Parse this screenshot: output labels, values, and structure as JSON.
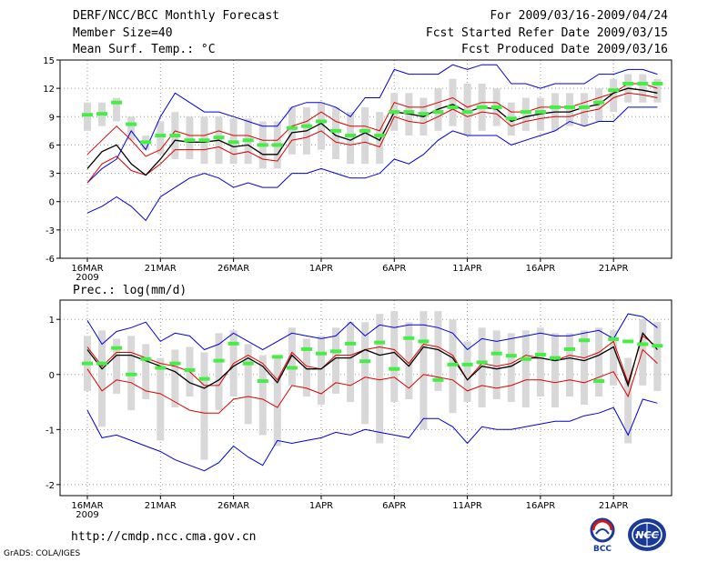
{
  "header": {
    "title": "DERF/NCC/BCC Monthly Forecast",
    "member_size": "Member Size=40",
    "variable": "Mean Surf. Temp.: °C",
    "forecast_period": "For 2009/03/16-2009/04/24",
    "fcst_started": "Fcst Started Refer Date 2009/03/15",
    "fcst_produced": "Fcst Produced Date 2009/03/16"
  },
  "footer": {
    "url": "http://cmdp.ncc.cma.gov.cn",
    "credit": "GrADS: COLA/IGES",
    "logo1_text": "BCC",
    "logo2_text": "NCC"
  },
  "colors": {
    "ensemble_mean": "#000000",
    "spread_band": "#dd0000",
    "min_max_envelope": "#0000dd",
    "member_range_bar": "#d8d8d8",
    "median_marker": "#44ee44",
    "grid": "#999999"
  },
  "chart_data": [
    {
      "type": "line",
      "title": "Mean Surf. Temp.: °C",
      "xlabel": "",
      "ylabel": "°C",
      "ylim": [
        -6,
        15
      ],
      "yticks": [
        -6,
        -3,
        0,
        3,
        6,
        9,
        12,
        15
      ],
      "x_tick_labels": [
        "16MAR",
        "21MAR",
        "26MAR",
        "1APR",
        "6APR",
        "11APR",
        "16APR",
        "21APR"
      ],
      "x_tick_index": [
        0,
        5,
        10,
        16,
        21,
        26,
        31,
        36
      ],
      "year_label": "2009",
      "grid": true,
      "days": 40,
      "series": [
        {
          "name": "max",
          "color": "blue",
          "values": [
            2.0,
            3.5,
            4.5,
            7.5,
            5.5,
            9.0,
            11.5,
            10.5,
            9.5,
            9.5,
            9.0,
            8.5,
            8.0,
            8.0,
            10.0,
            10.5,
            10.5,
            10.0,
            9.0,
            11.0,
            11.0,
            14.0,
            13.5,
            13.5,
            13.5,
            14.5,
            14.0,
            14.5,
            14.5,
            12.5,
            12.5,
            12.0,
            12.5,
            12.5,
            12.5,
            13.5,
            13.5,
            14.0,
            14.0,
            13.5
          ]
        },
        {
          "name": "upper_band",
          "color": "red",
          "values": [
            5.0,
            6.5,
            8.0,
            6.5,
            4.8,
            5.5,
            7.5,
            7.0,
            7.0,
            7.5,
            7.0,
            7.0,
            6.5,
            6.5,
            8.0,
            8.5,
            9.5,
            8.5,
            8.0,
            8.0,
            7.5,
            10.5,
            10.0,
            10.0,
            10.5,
            11.0,
            10.0,
            10.5,
            10.5,
            9.5,
            9.5,
            10.0,
            10.0,
            10.0,
            10.5,
            11.0,
            11.5,
            12.5,
            12.5,
            12.0
          ]
        },
        {
          "name": "ensemble_mean",
          "color": "black",
          "values": [
            3.5,
            5.3,
            6.0,
            4.0,
            2.8,
            4.5,
            6.5,
            6.3,
            6.3,
            6.5,
            5.8,
            6.0,
            5.0,
            5.0,
            7.3,
            7.5,
            8.3,
            7.0,
            6.5,
            7.3,
            6.5,
            9.5,
            9.3,
            9.0,
            9.8,
            10.3,
            9.5,
            10.0,
            9.8,
            8.5,
            9.0,
            9.3,
            9.5,
            9.5,
            10.0,
            10.3,
            11.5,
            12.0,
            11.8,
            11.5
          ]
        },
        {
          "name": "lower_band",
          "color": "red",
          "values": [
            2.0,
            4.0,
            4.8,
            3.3,
            2.8,
            4.0,
            5.5,
            5.5,
            5.5,
            5.8,
            5.0,
            5.3,
            4.5,
            4.3,
            6.5,
            6.8,
            7.5,
            6.3,
            6.0,
            6.3,
            5.8,
            9.0,
            8.5,
            8.3,
            9.0,
            9.8,
            9.0,
            9.5,
            9.3,
            8.0,
            8.5,
            8.8,
            9.0,
            9.0,
            9.5,
            9.8,
            11.0,
            11.5,
            11.3,
            11.0
          ]
        },
        {
          "name": "min",
          "color": "blue",
          "values": [
            -1.2,
            -0.5,
            0.5,
            -0.5,
            -2.0,
            0.5,
            1.5,
            2.5,
            3.0,
            2.5,
            1.5,
            2.0,
            1.5,
            1.5,
            3.0,
            3.0,
            3.5,
            3.0,
            2.5,
            2.5,
            3.0,
            4.5,
            4.0,
            5.0,
            6.5,
            7.5,
            7.0,
            7.0,
            7.0,
            6.0,
            6.5,
            7.0,
            7.5,
            8.5,
            8.0,
            8.5,
            8.5,
            10.0,
            10.0,
            10.0
          ]
        },
        {
          "name": "median",
          "color": "green",
          "values": [
            9.2,
            9.3,
            10.5,
            8.2,
            6.3,
            7.0,
            7.0,
            6.5,
            6.5,
            6.8,
            6.3,
            6.5,
            6.0,
            6.0,
            7.8,
            8.0,
            8.5,
            7.5,
            7.0,
            7.5,
            7.0,
            9.5,
            9.5,
            9.3,
            9.5,
            10.0,
            9.5,
            10.0,
            10.0,
            8.8,
            9.5,
            9.5,
            10.0,
            10.0,
            10.0,
            10.5,
            11.8,
            12.5,
            12.5,
            12.5
          ]
        },
        {
          "name": "range_high",
          "color": "gray",
          "values": [
            10.5,
            10.5,
            11.0,
            9.0,
            7.0,
            8.5,
            9.5,
            9.0,
            9.0,
            9.0,
            8.8,
            8.8,
            8.5,
            8.5,
            10.0,
            10.0,
            10.5,
            10.0,
            9.5,
            10.0,
            9.5,
            11.5,
            11.5,
            11.0,
            12.0,
            13.0,
            12.5,
            12.5,
            12.0,
            10.5,
            11.0,
            11.0,
            11.5,
            11.5,
            11.5,
            12.0,
            13.0,
            13.5,
            13.5,
            13.0
          ]
        },
        {
          "name": "range_low",
          "color": "gray",
          "values": [
            7.5,
            8.0,
            8.5,
            6.5,
            5.5,
            5.0,
            4.5,
            4.5,
            4.0,
            4.0,
            4.0,
            4.0,
            3.5,
            3.5,
            5.0,
            5.0,
            5.5,
            4.5,
            4.0,
            4.0,
            4.0,
            7.5,
            7.0,
            7.0,
            7.5,
            8.0,
            7.0,
            7.5,
            8.0,
            7.0,
            7.5,
            7.5,
            7.5,
            8.0,
            8.0,
            8.5,
            9.5,
            10.5,
            10.5,
            10.5
          ]
        }
      ]
    },
    {
      "type": "line",
      "title": "Prec.: log(mm/d)",
      "xlabel": "",
      "ylabel": "log(mm/d)",
      "ylim": [
        -2.2,
        1.35
      ],
      "yticks": [
        -2,
        -1,
        0,
        1
      ],
      "x_tick_labels": [
        "16MAR",
        "21MAR",
        "26MAR",
        "1APR",
        "6APR",
        "11APR",
        "16APR",
        "21APR"
      ],
      "x_tick_index": [
        0,
        5,
        10,
        16,
        21,
        26,
        31,
        36
      ],
      "year_label": "2009",
      "grid": true,
      "days": 40,
      "series": [
        {
          "name": "max",
          "color": "blue",
          "values": [
            0.98,
            0.55,
            0.78,
            0.85,
            0.95,
            0.6,
            0.75,
            0.7,
            0.45,
            0.55,
            0.75,
            0.6,
            0.45,
            0.6,
            0.75,
            0.7,
            0.65,
            0.7,
            0.95,
            0.7,
            0.9,
            0.85,
            0.9,
            0.9,
            0.85,
            0.75,
            0.45,
            0.65,
            0.6,
            0.65,
            0.7,
            0.75,
            0.7,
            0.7,
            0.75,
            0.8,
            0.65,
            1.1,
            1.05,
            0.85
          ]
        },
        {
          "name": "upper_band",
          "color": "red",
          "values": [
            0.5,
            0.15,
            0.4,
            0.4,
            0.3,
            0.2,
            0.15,
            0.05,
            -0.2,
            -0.2,
            0.2,
            0.35,
            0.2,
            -0.1,
            0.4,
            0.15,
            0.1,
            0.35,
            0.35,
            0.45,
            0.5,
            0.45,
            0.2,
            0.55,
            0.5,
            0.35,
            -0.1,
            0.2,
            0.15,
            0.2,
            0.35,
            0.3,
            0.25,
            0.35,
            0.3,
            0.4,
            0.6,
            -0.15,
            0.7,
            0.5
          ]
        },
        {
          "name": "ensemble_mean",
          "color": "black",
          "values": [
            0.45,
            0.1,
            0.35,
            0.35,
            0.25,
            0.15,
            0.05,
            -0.15,
            -0.25,
            -0.1,
            0.15,
            0.3,
            0.15,
            -0.15,
            0.35,
            0.1,
            0.1,
            0.3,
            0.3,
            0.45,
            0.35,
            0.4,
            0.15,
            0.5,
            0.45,
            0.3,
            -0.1,
            0.15,
            0.1,
            0.15,
            0.3,
            0.3,
            0.25,
            0.3,
            0.25,
            0.35,
            0.5,
            -0.2,
            0.75,
            0.45
          ]
        },
        {
          "name": "lower_band",
          "color": "red",
          "values": [
            0.1,
            -0.3,
            -0.1,
            -0.15,
            -0.3,
            -0.35,
            -0.5,
            -0.65,
            -0.7,
            -0.7,
            -0.45,
            -0.4,
            -0.45,
            -0.6,
            -0.2,
            -0.25,
            -0.35,
            -0.15,
            -0.2,
            -0.05,
            -0.1,
            -0.05,
            -0.25,
            0.0,
            -0.05,
            -0.1,
            -0.3,
            -0.2,
            -0.25,
            -0.2,
            -0.1,
            -0.1,
            -0.15,
            -0.1,
            -0.15,
            -0.05,
            0.05,
            -0.4,
            0.45,
            0.2
          ]
        },
        {
          "name": "min",
          "color": "blue",
          "values": [
            -0.65,
            -1.15,
            -1.1,
            -1.2,
            -1.3,
            -1.4,
            -1.55,
            -1.65,
            -1.75,
            -1.6,
            -1.3,
            -1.5,
            -1.65,
            -1.2,
            -1.25,
            -1.2,
            -1.15,
            -1.05,
            -1.1,
            -1.0,
            -1.05,
            -1.1,
            -1.15,
            -0.8,
            -0.8,
            -0.95,
            -1.25,
            -0.95,
            -1.0,
            -1.0,
            -0.95,
            -0.9,
            -0.85,
            -0.85,
            -0.75,
            -0.7,
            -0.6,
            -1.1,
            -0.45,
            -0.52
          ]
        },
        {
          "name": "median",
          "color": "green",
          "values": [
            0.2,
            0.2,
            0.48,
            0.0,
            0.28,
            0.12,
            0.2,
            0.08,
            -0.08,
            0.25,
            0.56,
            0.2,
            -0.12,
            0.32,
            0.12,
            0.46,
            0.38,
            0.42,
            0.56,
            0.24,
            0.58,
            0.1,
            0.66,
            0.6,
            -0.1,
            0.18,
            0.18,
            0.22,
            0.38,
            0.34,
            0.28,
            0.36,
            0.3,
            0.46,
            0.62,
            -0.12,
            0.64,
            0.6,
            0.55,
            0.52
          ]
        },
        {
          "name": "range_high",
          "color": "gray",
          "values": [
            0.7,
            0.8,
            0.65,
            0.7,
            0.55,
            0.3,
            0.45,
            0.5,
            0.4,
            0.75,
            0.8,
            0.55,
            0.35,
            0.35,
            0.85,
            0.65,
            0.7,
            0.85,
            0.95,
            0.95,
            1.1,
            1.15,
            0.95,
            1.15,
            1.15,
            1.0,
            0.6,
            0.85,
            0.8,
            0.75,
            0.8,
            0.85,
            0.75,
            0.75,
            0.8,
            0.85,
            0.8,
            0.3,
            1.0,
            0.95
          ]
        },
        {
          "name": "range_low",
          "color": "gray",
          "values": [
            -0.3,
            -0.95,
            -0.35,
            -0.65,
            -0.45,
            -1.2,
            -0.6,
            -0.4,
            -1.55,
            -0.65,
            -0.4,
            -0.9,
            -1.1,
            -1.3,
            -0.2,
            -0.4,
            -0.55,
            -0.35,
            -0.5,
            -0.9,
            -1.25,
            -0.5,
            -0.45,
            -1.0,
            -0.3,
            -0.7,
            -0.5,
            -0.6,
            -0.45,
            -0.5,
            -0.6,
            -0.4,
            -0.6,
            -0.4,
            -0.55,
            -0.4,
            -0.2,
            -1.25,
            -0.2,
            -0.3
          ]
        }
      ]
    }
  ]
}
